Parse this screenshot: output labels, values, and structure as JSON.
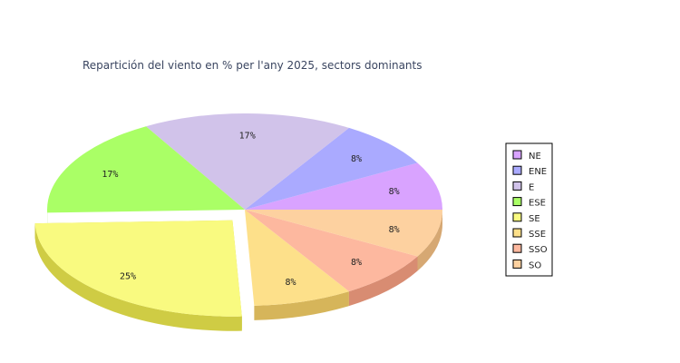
{
  "chart_data": {
    "type": "pie",
    "title": "Repartición del viento en % per l'any 2025, sectors dominants",
    "categories": [
      "NE",
      "ENE",
      "E",
      "ESE",
      "SE",
      "SSE",
      "SSO",
      "SO"
    ],
    "values": [
      8,
      8,
      17,
      17,
      25,
      8,
      8,
      8
    ],
    "value_labels": [
      "8%",
      "8%",
      "17%",
      "17%",
      "25%",
      "8%",
      "8%",
      "8%"
    ],
    "colors": [
      "#d9a3ff",
      "#aaaaff",
      "#d1c3ea",
      "#aaff66",
      "#f9fa80",
      "#fde08a",
      "#fdb89f",
      "#fdd1a0"
    ],
    "side_colors": [
      "#b974dd",
      "#7f7fdd",
      "#a597c0",
      "#77d033",
      "#cfcc44",
      "#d6b55a",
      "#d88c72",
      "#d6a873"
    ],
    "exploded": [
      "SE"
    ],
    "three_d": true,
    "legend_position": "right"
  }
}
